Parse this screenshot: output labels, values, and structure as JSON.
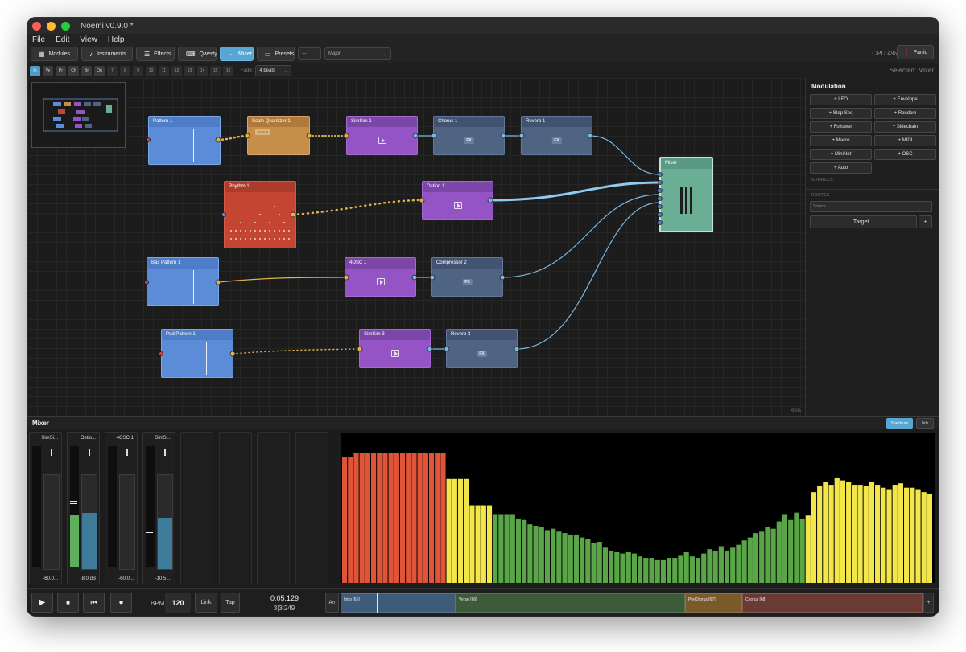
{
  "window": {
    "title": "Noemi v0.9.0 *"
  },
  "menu": [
    "File",
    "Edit",
    "View",
    "Help"
  ],
  "toolbar": {
    "buttons": [
      {
        "label": "Modules",
        "icon": "grid-icon"
      },
      {
        "label": "Instruments",
        "icon": "music-note-icon"
      },
      {
        "label": "Effects",
        "icon": "sliders-icon"
      },
      {
        "label": "Qwerty",
        "icon": "keyboard-icon"
      },
      {
        "label": "Mixer",
        "icon": "mixer-icon"
      },
      {
        "label": "Presets",
        "icon": "folder-icon"
      }
    ],
    "root_select": "---",
    "scale_select": "Major",
    "cpu": "CPU 4%",
    "panic": "Panic"
  },
  "channels": [
    "In",
    "Ve",
    "Pr",
    "Ch",
    "Br",
    "Ou",
    "7",
    "8",
    "9",
    "10",
    "11",
    "12",
    "13",
    "14",
    "15",
    "16"
  ],
  "fade": {
    "label": "Fade:",
    "value": "4 beats"
  },
  "selected": "Selected: Mixer",
  "canvas": {
    "zoom": "95%",
    "nodes": {
      "pattern1": "Pattern 1",
      "scale_quantizer": "Scale Quantizer 1",
      "scale_tag": "SCALE",
      "simsim1": "SimSim 1",
      "chorus1": "Chorus 1",
      "reverb1": "Reverb 1",
      "rhythm1": "Rhythm 1",
      "ostion1": "Ostion 1",
      "bass_pattern": "Bas   Pattern 1",
      "osc1": "4OSC 1",
      "compressor2": "Compressor 2",
      "pad_pattern": "Pad Pattern 1",
      "simsim3": "SimSim 3",
      "reverb3": "Reverb 3",
      "mixer": "Mixer",
      "fx": "FX"
    }
  },
  "modulation": {
    "title": "Modulation",
    "buttons": [
      "+ LFO",
      "+ Envelope",
      "+ Step Seq",
      "+ Random",
      "+ Follower",
      "+ Sidechain",
      "+ Macro",
      "+ MIDI",
      "+ MiniNot",
      "+ OSC",
      "+ Auto"
    ],
    "sources_label": "SOURCES",
    "routes_label": "ROUTES",
    "source_placeholder": "Source...",
    "target_label": "Target...",
    "add": "+"
  },
  "mixer": {
    "title": "Mixer",
    "spectrum_btn": "Spectrum",
    "ch8_btn": "8ch",
    "strips": [
      {
        "name": "SimSi...",
        "db": "-60.0...",
        "meter": 0,
        "fader": 0
      },
      {
        "name": "Ostio...",
        "db": "-8.0 dB",
        "meter": 0.43,
        "fader": 0.6
      },
      {
        "name": "4OSC 1",
        "db": "-60.0...",
        "meter": 0,
        "fader": 0
      },
      {
        "name": "SimSi...",
        "db": "-10.5 ...",
        "meter": 0,
        "fader": 0.55
      }
    ],
    "spectrum": [
      0.86,
      0.86,
      0.89,
      0.89,
      0.89,
      0.89,
      0.89,
      0.89,
      0.89,
      0.89,
      0.89,
      0.89,
      0.89,
      0.89,
      0.89,
      0.89,
      0.89,
      0.89,
      0.71,
      0.71,
      0.71,
      0.71,
      0.53,
      0.53,
      0.53,
      0.53,
      0.47,
      0.47,
      0.47,
      0.47,
      0.44,
      0.43,
      0.4,
      0.39,
      0.38,
      0.36,
      0.37,
      0.35,
      0.34,
      0.33,
      0.33,
      0.31,
      0.3,
      0.27,
      0.28,
      0.24,
      0.22,
      0.21,
      0.2,
      0.21,
      0.2,
      0.18,
      0.17,
      0.17,
      0.16,
      0.16,
      0.17,
      0.17,
      0.19,
      0.21,
      0.18,
      0.17,
      0.2,
      0.23,
      0.22,
      0.25,
      0.22,
      0.24,
      0.26,
      0.29,
      0.31,
      0.34,
      0.35,
      0.38,
      0.37,
      0.42,
      0.47,
      0.43,
      0.48,
      0.44,
      0.46,
      0.62,
      0.66,
      0.69,
      0.67,
      0.72,
      0.7,
      0.69,
      0.67,
      0.67,
      0.66,
      0.69,
      0.67,
      0.65,
      0.64,
      0.67,
      0.68,
      0.65,
      0.65,
      0.64,
      0.62,
      0.61
    ]
  },
  "transport": {
    "bpm_label": "BPM",
    "bpm": "120",
    "link": "Link",
    "tap": "Tap",
    "time": "0:05.129",
    "beats": "3|3|249",
    "arr": "Arr",
    "sections": [
      {
        "label": "Intro [65]",
        "color": "#3e5b7a"
      },
      {
        "label": "Verse [66]",
        "color": "#3d5a3a"
      },
      {
        "label": "PreChorus [67]",
        "color": "#7a5a2a"
      },
      {
        "label": "Chorus [68]",
        "color": "#6a3a34"
      }
    ],
    "add": "+"
  }
}
